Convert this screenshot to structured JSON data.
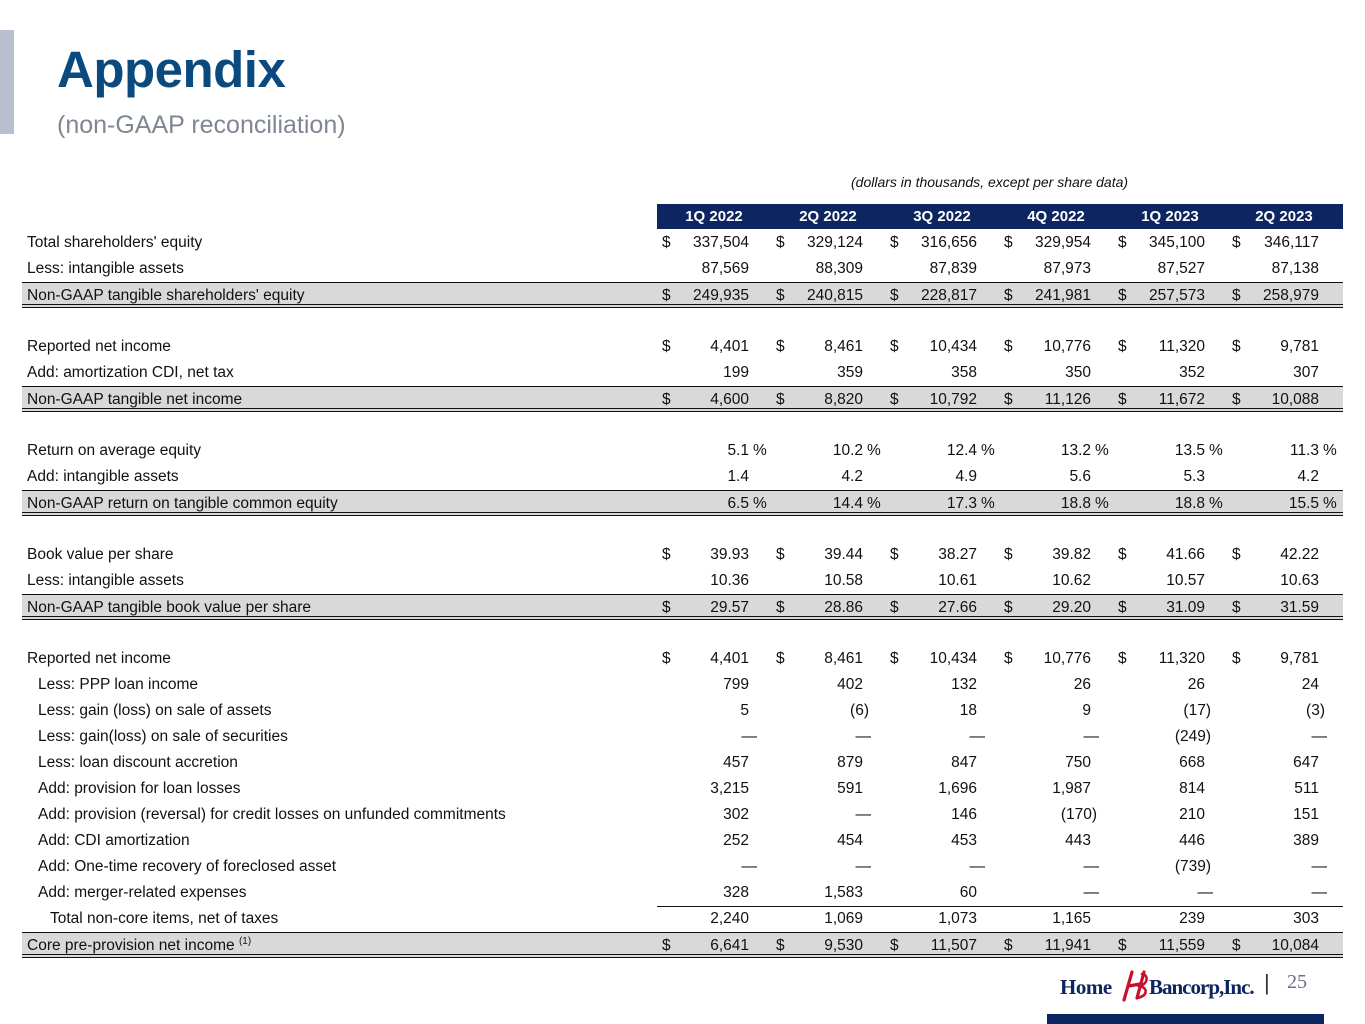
{
  "header": {
    "title": "Appendix",
    "subtitle": "(non-GAAP reconciliation)",
    "note": "(dollars in thousands, except per share data)"
  },
  "columns": [
    "1Q 2022",
    "2Q 2022",
    "3Q 2022",
    "4Q 2022",
    "1Q 2023",
    "2Q 2023"
  ],
  "rows": [
    {
      "label": "Total shareholders' equity",
      "style": "normal",
      "indent": 0,
      "dollar": true,
      "values": [
        "337,504",
        "329,124",
        "316,656",
        "329,954",
        "345,100",
        "346,117"
      ]
    },
    {
      "label": "Less: intangible assets",
      "style": "normal",
      "indent": 0,
      "dollar": false,
      "values": [
        "87,569",
        "88,309",
        "87,839",
        "87,973",
        "87,527",
        "87,138"
      ]
    },
    {
      "label": "Non-GAAP tangible shareholders' equity",
      "style": "total",
      "indent": 0,
      "dollar": true,
      "values": [
        "249,935",
        "240,815",
        "228,817",
        "241,981",
        "257,573",
        "258,979"
      ]
    },
    {
      "style": "gap"
    },
    {
      "label": "Reported net income",
      "style": "normal",
      "indent": 0,
      "dollar": true,
      "values": [
        "4,401",
        "8,461",
        "10,434",
        "10,776",
        "11,320",
        "9,781"
      ]
    },
    {
      "label": "Add: amortization CDI, net tax",
      "style": "normal",
      "indent": 0,
      "dollar": false,
      "values": [
        "199",
        "359",
        "358",
        "350",
        "352",
        "307"
      ]
    },
    {
      "label": "Non-GAAP tangible net income",
      "style": "total",
      "indent": 0,
      "dollar": true,
      "values": [
        "4,600",
        "8,820",
        "10,792",
        "11,126",
        "11,672",
        "10,088"
      ]
    },
    {
      "style": "gap"
    },
    {
      "label": "Return on average equity",
      "style": "normal",
      "indent": 0,
      "dollar": false,
      "pct": true,
      "values": [
        "5.1",
        "10.2",
        "12.4",
        "13.2",
        "13.5",
        "11.3"
      ]
    },
    {
      "label": "Add: intangible assets",
      "style": "normal",
      "indent": 0,
      "dollar": false,
      "values": [
        "1.4",
        "4.2",
        "4.9",
        "5.6",
        "5.3",
        "4.2"
      ]
    },
    {
      "label": "Non-GAAP return on tangible common equity",
      "style": "total",
      "indent": 0,
      "dollar": false,
      "pct": true,
      "values": [
        "6.5",
        "14.4",
        "17.3",
        "18.8",
        "18.8",
        "15.5"
      ]
    },
    {
      "style": "gap"
    },
    {
      "label": "Book value per share",
      "style": "normal",
      "indent": 0,
      "dollar": true,
      "values": [
        "39.93",
        "39.44",
        "38.27",
        "39.82",
        "41.66",
        "42.22"
      ]
    },
    {
      "label": "Less: intangible assets",
      "style": "normal",
      "indent": 0,
      "dollar": false,
      "values": [
        "10.36",
        "10.58",
        "10.61",
        "10.62",
        "10.57",
        "10.63"
      ]
    },
    {
      "label": "Non-GAAP tangible book value per share",
      "style": "total",
      "indent": 0,
      "dollar": true,
      "values": [
        "29.57",
        "28.86",
        "27.66",
        "29.20",
        "31.09",
        "31.59"
      ]
    },
    {
      "style": "gap"
    },
    {
      "label": "Reported net income",
      "style": "normal",
      "indent": 0,
      "dollar": true,
      "values": [
        "4,401",
        "8,461",
        "10,434",
        "10,776",
        "11,320",
        "9,781"
      ]
    },
    {
      "label": "Less: PPP loan income",
      "style": "normal",
      "indent": 1,
      "dollar": false,
      "values": [
        "799",
        "402",
        "132",
        "26",
        "26",
        "24"
      ]
    },
    {
      "label": "Less: gain (loss) on sale of assets",
      "style": "normal",
      "indent": 1,
      "dollar": false,
      "values": [
        "5",
        "(6)",
        "18",
        "9",
        "(17)",
        "(3)"
      ]
    },
    {
      "label": "Less: gain(loss) on sale of securities",
      "style": "normal",
      "indent": 1,
      "dollar": false,
      "values": [
        "—",
        "—",
        "—",
        "—",
        "(249)",
        "—"
      ]
    },
    {
      "label": "Less: loan discount accretion",
      "style": "normal",
      "indent": 1,
      "dollar": false,
      "values": [
        "457",
        "879",
        "847",
        "750",
        "668",
        "647"
      ]
    },
    {
      "label": "Add: provision for loan losses",
      "style": "normal",
      "indent": 1,
      "dollar": false,
      "values": [
        "3,215",
        "591",
        "1,696",
        "1,987",
        "814",
        "511"
      ]
    },
    {
      "label": "Add: provision (reversal) for credit losses on unfunded commitments",
      "style": "normal",
      "indent": 1,
      "dollar": false,
      "values": [
        "302",
        "—",
        "146",
        "(170)",
        "210",
        "151"
      ]
    },
    {
      "label": "Add: CDI amortization",
      "style": "normal",
      "indent": 1,
      "dollar": false,
      "values": [
        "252",
        "454",
        "453",
        "443",
        "446",
        "389"
      ]
    },
    {
      "label": "Add: One-time recovery of foreclosed asset",
      "style": "normal",
      "indent": 1,
      "dollar": false,
      "values": [
        "—",
        "—",
        "—",
        "—",
        "(739)",
        "—"
      ]
    },
    {
      "label": "Add: merger-related expenses",
      "style": "normal",
      "indent": 1,
      "dollar": false,
      "values": [
        "328",
        "1,583",
        "60",
        "—",
        "—",
        "—"
      ]
    },
    {
      "label": "Total non-core items, net of taxes",
      "style": "subtotal",
      "indent": 2,
      "dollar": false,
      "values": [
        "2,240",
        "1,069",
        "1,073",
        "1,165",
        "239",
        "303"
      ]
    },
    {
      "label": "Core pre-provision net income",
      "sup": "(1)",
      "style": "total",
      "indent": 0,
      "dollar": true,
      "values": [
        "6,641",
        "9,530",
        "11,507",
        "11,941",
        "11,559",
        "10,084"
      ]
    }
  ],
  "footer": {
    "logo_home": "Home",
    "logo_bancorp": "Bancorp,Inc.",
    "separator": "|",
    "page_number": "25"
  },
  "colors": {
    "title": "#0b4a7e",
    "header_fill": "#0d2560",
    "total_row_fill": "#d9d9d9",
    "logo_red": "#c8102e",
    "accent_bar": "#b8c0d0"
  }
}
